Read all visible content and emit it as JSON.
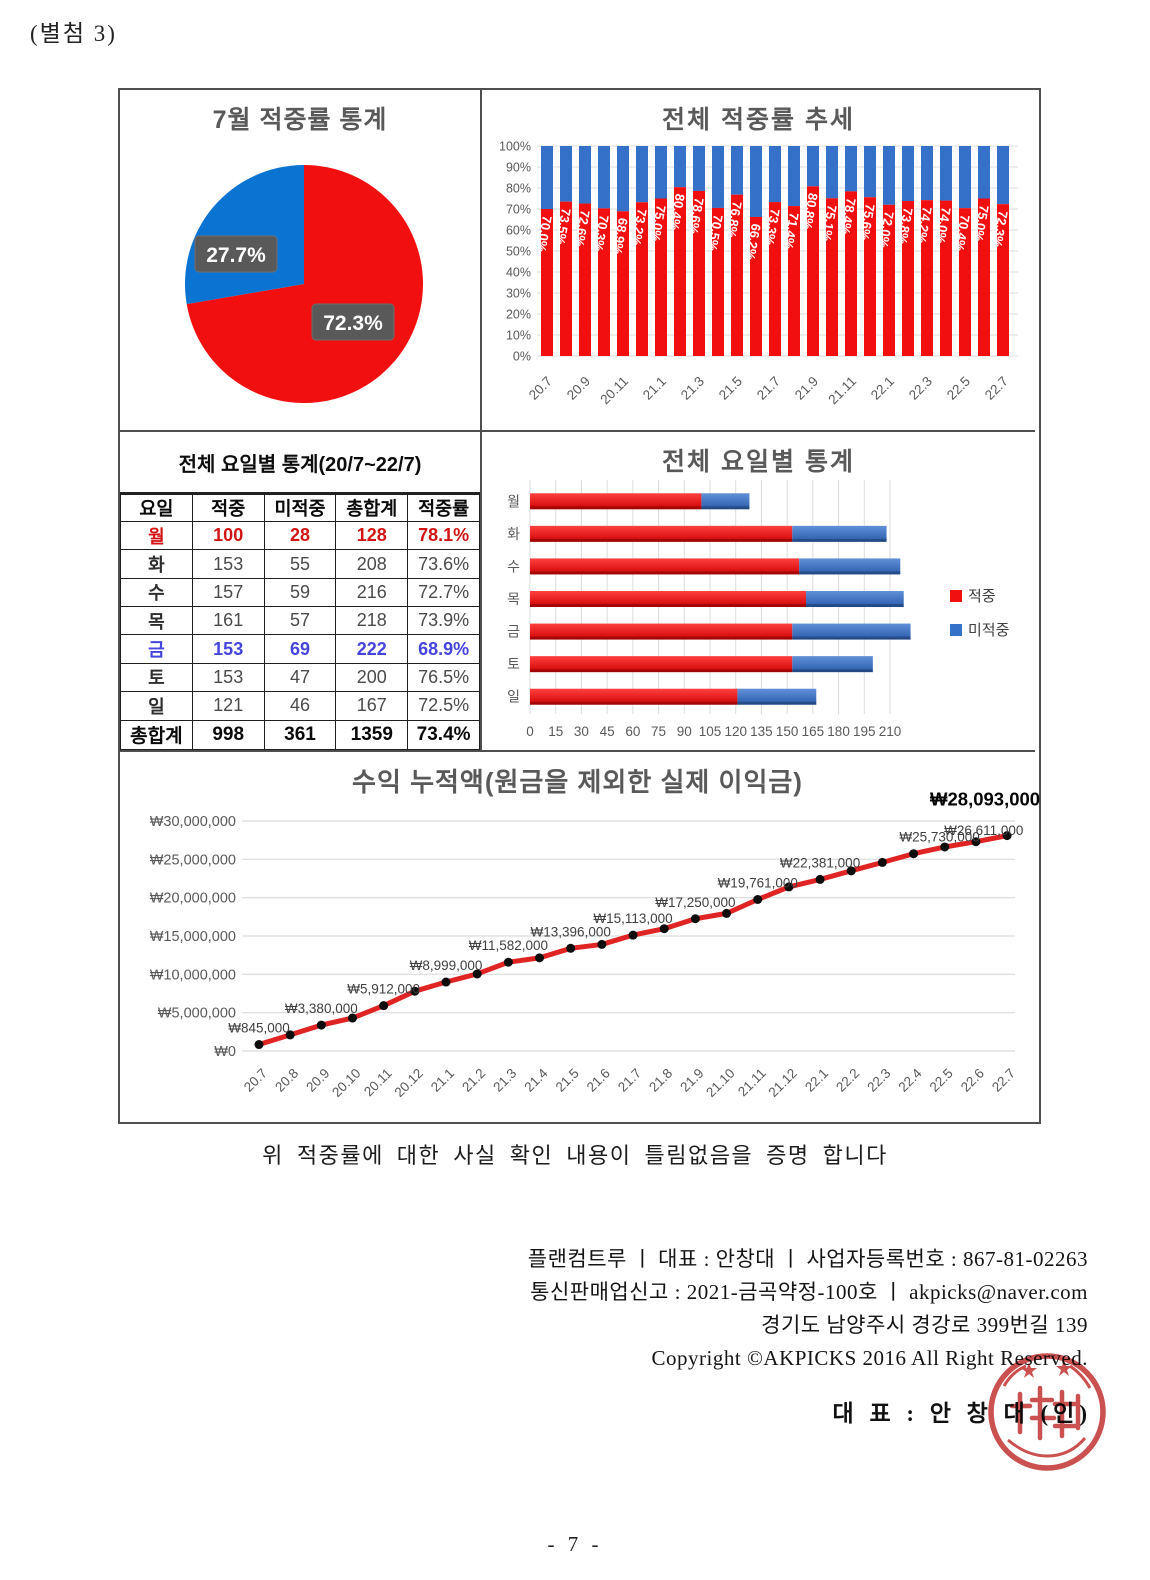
{
  "page": {
    "attachment_label": "(별첨 3)",
    "certify_text": "위 적중률에 대한 사실 확인 내용이 틀림없음을 증명 합니다",
    "company_lines": [
      "플랜컴트루 ㅣ 대표 : 안창대 ㅣ 사업자등록번호 : 867-81-02263",
      "통신판매업신고 : 2021-금곡약정-100호 ㅣ akpicks@naver.com",
      "경기도 남양주시 경강로 399번길 139",
      "Copyright ©AKPICKS 2016 All Right Reserved."
    ],
    "representative_line": "대 표 : 안 창 대 (인)",
    "page_number": "- 7 -"
  },
  "colors": {
    "hit_red": "#f20f0f",
    "miss_blue": "#3571c8",
    "pie_blue": "#0b73d2",
    "line_red": "#e02424",
    "dot_black": "#0d0d0d",
    "title_gray": "#595959",
    "grid_gray": "#dcdcdc",
    "label_box_gray": "#595959"
  },
  "table": {
    "title": "전체 요일별 통계(20/7~22/7)",
    "headers": [
      "요일",
      "적중",
      "미적중",
      "총합계",
      "적중률"
    ],
    "rows": [
      {
        "cells": [
          "월",
          "100",
          "28",
          "128",
          "78.1%"
        ],
        "style": "red"
      },
      {
        "cells": [
          "화",
          "153",
          "55",
          "208",
          "73.6%"
        ],
        "style": ""
      },
      {
        "cells": [
          "수",
          "157",
          "59",
          "216",
          "72.7%"
        ],
        "style": ""
      },
      {
        "cells": [
          "목",
          "161",
          "57",
          "218",
          "73.9%"
        ],
        "style": ""
      },
      {
        "cells": [
          "금",
          "153",
          "69",
          "222",
          "68.9%"
        ],
        "style": "blue"
      },
      {
        "cells": [
          "토",
          "153",
          "47",
          "200",
          "76.5%"
        ],
        "style": ""
      },
      {
        "cells": [
          "일",
          "121",
          "46",
          "167",
          "72.5%"
        ],
        "style": ""
      },
      {
        "cells": [
          "총합계",
          "998",
          "361",
          "1359",
          "73.4%"
        ],
        "style": "total"
      }
    ]
  },
  "chart_data": [
    {
      "type": "pie",
      "title": "7월 적중률 통계",
      "labels": [
        "적중",
        "미적중"
      ],
      "values": [
        72.3,
        27.7
      ],
      "value_labels": [
        "72.3%",
        "27.7%"
      ],
      "colors": [
        "red",
        "blue"
      ],
      "start_angle_deg": -90,
      "direction": "clockwise"
    },
    {
      "type": "bar",
      "subtype": "stacked-100-percent-vertical",
      "title": "전체 적중률 추세",
      "categories": [
        "20.7",
        "20.8",
        "20.9",
        "20.10",
        "20.11",
        "20.12",
        "21.1",
        "21.2",
        "21.3",
        "21.4",
        "21.5",
        "21.6",
        "21.7",
        "21.8",
        "21.9",
        "21.10",
        "21.11",
        "21.12",
        "22.1",
        "22.2",
        "22.3",
        "22.4",
        "22.5",
        "22.6",
        "22.7"
      ],
      "series": [
        {
          "name": "적중",
          "values": [
            70.0,
            73.5,
            72.6,
            70.3,
            68.9,
            73.2,
            75.0,
            80.4,
            78.6,
            70.5,
            76.8,
            66.2,
            73.3,
            71.4,
            80.8,
            75.1,
            78.4,
            75.6,
            72.0,
            73.8,
            74.2,
            74.0,
            70.4,
            75.0,
            72.3
          ]
        },
        {
          "name": "미적중",
          "values": [
            30.0,
            26.5,
            27.4,
            29.7,
            31.1,
            26.8,
            25.0,
            19.6,
            21.4,
            29.5,
            23.2,
            33.8,
            26.7,
            28.6,
            19.2,
            24.9,
            21.6,
            24.4,
            28.0,
            26.2,
            25.8,
            26.0,
            29.6,
            25.0,
            27.7
          ]
        }
      ],
      "bar_labels": [
        "70.0%",
        "73.5%",
        "72.6%",
        "70.3%",
        "68.9%",
        "73.2%",
        "75.0%",
        "80.4%",
        "78.6%",
        "70.5%",
        "76.8%",
        "66.2%",
        "73.3%",
        "71.4%",
        "80.8%",
        "75.1%",
        "78.4%",
        "75.6%",
        "72.0%",
        "73.8%",
        "74.2%",
        "74.0%",
        "70.4%",
        "75.0%",
        "72.3%"
      ],
      "yticks": [
        "0%",
        "10%",
        "20%",
        "30%",
        "40%",
        "50%",
        "60%",
        "70%",
        "80%",
        "90%",
        "100%"
      ],
      "xticks_shown": [
        "20.7",
        "20.9",
        "20.11",
        "21.1",
        "21.3",
        "21.5",
        "21.7",
        "21.9",
        "21.11",
        "22.1",
        "22.3",
        "22.5",
        "22.7"
      ],
      "ylim": [
        0,
        100
      ],
      "grid": true
    },
    {
      "type": "bar",
      "subtype": "stacked-horizontal",
      "title": "전체 요일별 통계",
      "categories": [
        "월",
        "화",
        "수",
        "목",
        "금",
        "토",
        "일"
      ],
      "series": [
        {
          "name": "적중",
          "values": [
            100,
            153,
            157,
            161,
            153,
            153,
            121
          ]
        },
        {
          "name": "미적중",
          "values": [
            28,
            55,
            59,
            57,
            69,
            47,
            46
          ]
        }
      ],
      "xlim": [
        0,
        210
      ],
      "xtick_step": 15,
      "xticks": [
        "0",
        "15",
        "30",
        "45",
        "60",
        "75",
        "90",
        "105",
        "120",
        "135",
        "150",
        "165",
        "180",
        "195",
        "210"
      ],
      "legend": [
        "적중",
        "미적중"
      ],
      "legend_position": "right",
      "grid": true
    },
    {
      "type": "line",
      "title": "수익 누적액(원금을 제외한 실제 이익금)",
      "x": [
        "20.7",
        "20.8",
        "20.9",
        "20.10",
        "20.11",
        "20.12",
        "21.1",
        "21.2",
        "21.3",
        "21.4",
        "21.5",
        "21.6",
        "21.7",
        "21.8",
        "21.9",
        "21.10",
        "21.11",
        "21.12",
        "22.1",
        "22.2",
        "22.3",
        "22.4",
        "22.5",
        "22.6",
        "22.7"
      ],
      "values": [
        845000,
        2100000,
        3380000,
        4300000,
        5912000,
        7800000,
        8999000,
        10050000,
        11582000,
        12150000,
        13396000,
        13900000,
        15113000,
        15950000,
        17250000,
        17950000,
        19761000,
        21400000,
        22381000,
        23500000,
        24600000,
        25730000,
        26611000,
        27300000,
        28093000
      ],
      "point_labels": {
        "0": "₩845,000",
        "2": "₩3,380,000",
        "4": "₩5,912,000",
        "6": "₩8,999,000",
        "8": "₩11,582,000",
        "10": "₩13,396,000",
        "12": "₩15,113,000",
        "14": "₩17,250,000",
        "16": "₩19,761,000",
        "18": "₩22,381,000",
        "21": "₩25,730,000",
        "22": "₩26,611,000",
        "24": "₩28,093,000"
      },
      "label_dx": {
        "21": 26,
        "22": 39
      },
      "final_label_index": 24,
      "ylim": [
        0,
        30000000
      ],
      "yticks": [
        "₩0",
        "₩5,000,000",
        "₩10,000,000",
        "₩15,000,000",
        "₩20,000,000",
        "₩25,000,000",
        "₩30,000,000"
      ],
      "grid": true
    }
  ]
}
